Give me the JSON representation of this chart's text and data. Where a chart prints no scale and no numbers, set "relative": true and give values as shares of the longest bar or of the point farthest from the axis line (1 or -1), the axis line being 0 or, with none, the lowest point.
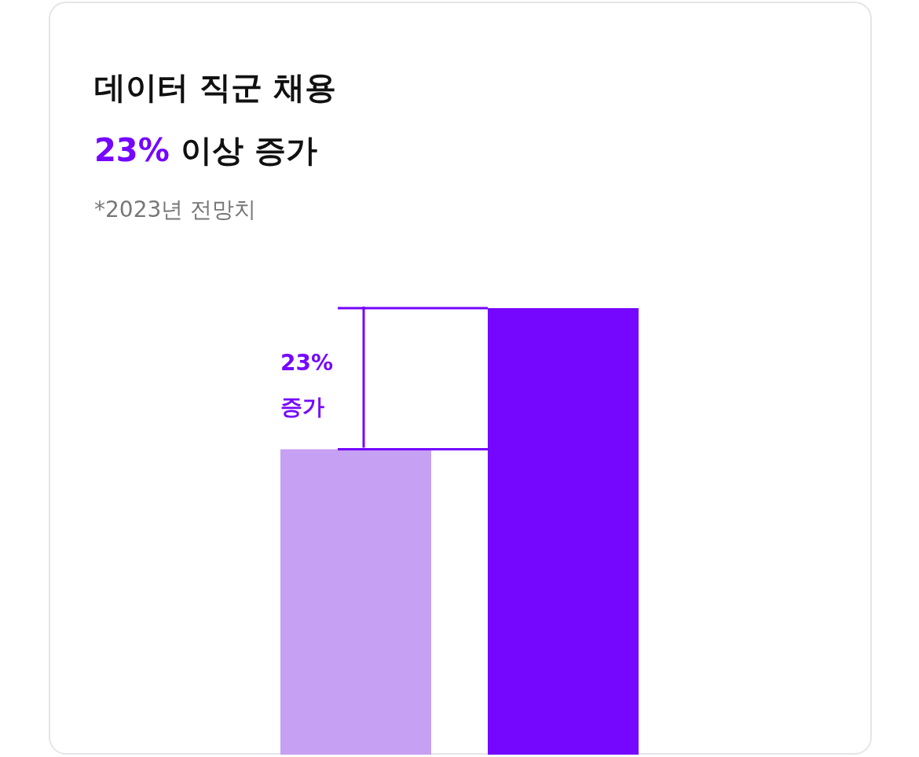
{
  "chart_data": {
    "type": "bar",
    "title": "데이터 직군 채용",
    "subtitle": "23% 이상 증가",
    "annotations": [
      "*2023년 전망치",
      "23% 증가"
    ],
    "categories": [
      null,
      null
    ],
    "values": [
      0.684,
      1
    ],
    "colors": [
      "#c6a0f2",
      "#7506ff"
    ],
    "relative": true,
    "ref_lines": [
      {
        "axis": "y",
        "value": 1,
        "color": "#7506ff"
      },
      {
        "axis": "y",
        "value": 0.684,
        "color": "#7506ff"
      }
    ]
  }
}
